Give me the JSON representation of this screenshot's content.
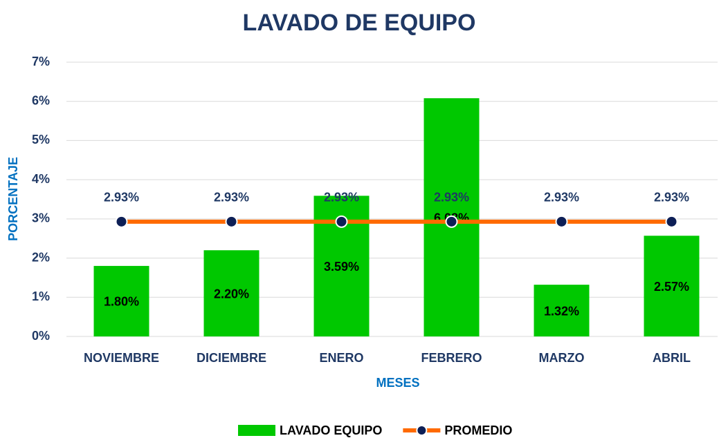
{
  "chart_data": {
    "type": "bar",
    "title": "LAVADO DE EQUIPO",
    "x_label": "MESES",
    "y_label": "PORCENTAJE",
    "categories": [
      "NOVIEMBRE",
      "DICIEMBRE",
      "ENERO",
      "FEBRERO",
      "MARZO",
      "ABRIL"
    ],
    "series": [
      {
        "name": "LAVADO EQUIPO",
        "type": "bar",
        "color": "#00c800",
        "values": [
          1.8,
          2.2,
          3.59,
          6.08,
          1.32,
          2.57
        ],
        "value_labels": [
          "1.80%",
          "2.20%",
          "3.59%",
          "6.08%",
          "1.32%",
          "2.57%"
        ]
      },
      {
        "name": "PROMEDIO",
        "type": "line",
        "color": "#ff6a00",
        "marker_color": "#0d1f56",
        "values": [
          2.93,
          2.93,
          2.93,
          2.93,
          2.93,
          2.93
        ],
        "value_labels": [
          "2.93%",
          "2.93%",
          "2.93%",
          "2.93%",
          "2.93%",
          "2.93%"
        ]
      }
    ],
    "ylim": [
      0,
      7
    ],
    "yticks": [
      {
        "value": 0,
        "label": "0%"
      },
      {
        "value": 1,
        "label": "1%"
      },
      {
        "value": 2,
        "label": "2%"
      },
      {
        "value": 3,
        "label": "3%"
      },
      {
        "value": 4,
        "label": "4%"
      },
      {
        "value": 5,
        "label": "5%"
      },
      {
        "value": 6,
        "label": "6%"
      },
      {
        "value": 7,
        "label": "7%"
      }
    ],
    "grid": true,
    "legend": "bottom"
  }
}
